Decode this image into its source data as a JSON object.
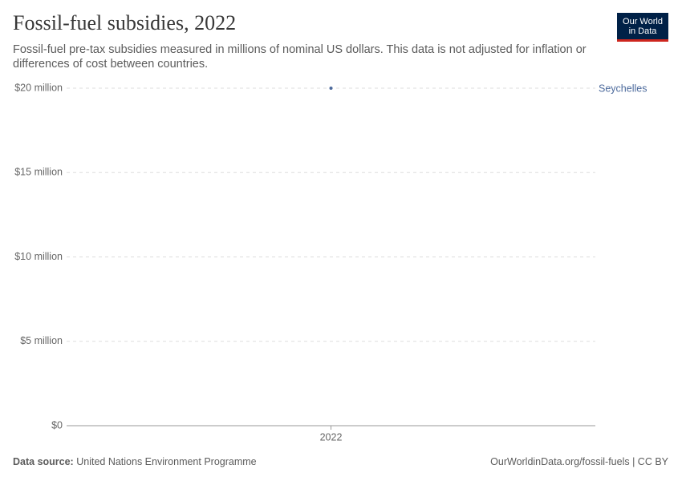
{
  "chart_data": {
    "type": "line",
    "title": "Fossil-fuel subsidies, 2022",
    "subtitle": "Fossil-fuel pre-tax subsidies measured in millions of nominal US dollars. This data is not adjusted for inflation or differences of cost between countries.",
    "categories": [
      "2022"
    ],
    "series": [
      {
        "name": "Seychelles",
        "color": "#4c6a9c",
        "values": [
          20
        ]
      }
    ],
    "ylim": [
      0,
      20
    ],
    "yticks": [
      {
        "value": 0,
        "label": "$0"
      },
      {
        "value": 5,
        "label": "$5 million"
      },
      {
        "value": 10,
        "label": "$10 million"
      },
      {
        "value": 15,
        "label": "$15 million"
      },
      {
        "value": 20,
        "label": "$20 million"
      }
    ],
    "grid": true,
    "source_label": "Data source:",
    "source": "United Nations Environment Programme",
    "footer_right": "OurWorldinData.org/fossil-fuels | CC BY",
    "logo": [
      "Our World",
      "in Data"
    ]
  }
}
